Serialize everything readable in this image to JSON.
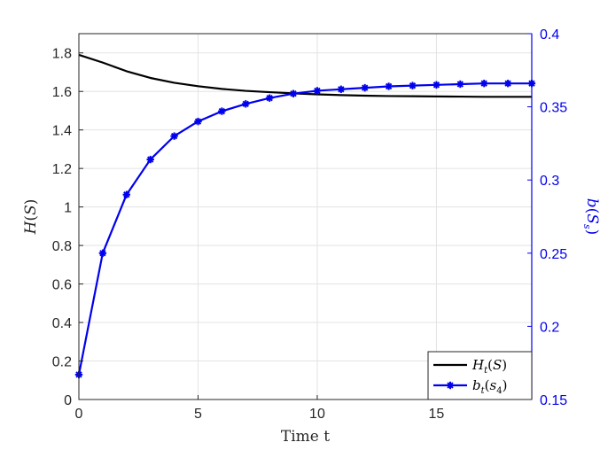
{
  "chart_data": {
    "type": "line",
    "xlabel": "Time t",
    "ylabel_left": "H(S)",
    "ylabel_right": "b(S_s)",
    "xlim": [
      0,
      19
    ],
    "ylim_left": [
      0,
      1.9
    ],
    "ylim_right": [
      0.15,
      0.4
    ],
    "x_ticks": [
      0,
      5,
      10,
      15
    ],
    "y_ticks_left": [
      0,
      0.2,
      0.4,
      0.6,
      0.8,
      1,
      1.2,
      1.4,
      1.6,
      1.8
    ],
    "y_ticks_right": [
      0.15,
      0.2,
      0.25,
      0.3,
      0.35,
      0.4
    ],
    "grid": true,
    "legend_position": "bottom-right",
    "series": [
      {
        "name": "H_t(S)",
        "axis": "left",
        "color": "#000000",
        "marker": "none",
        "x": [
          0,
          1,
          2,
          3,
          4,
          5,
          6,
          7,
          8,
          9,
          10,
          11,
          12,
          13,
          14,
          15,
          16,
          17,
          18,
          19
        ],
        "y": [
          1.79,
          1.75,
          1.705,
          1.67,
          1.645,
          1.627,
          1.613,
          1.603,
          1.596,
          1.59,
          1.585,
          1.581,
          1.578,
          1.576,
          1.575,
          1.574,
          1.573,
          1.572,
          1.572,
          1.572
        ]
      },
      {
        "name": "b_t(s_4)",
        "axis": "right",
        "color": "#0000ee",
        "marker": "asterisk",
        "x": [
          0,
          1,
          2,
          3,
          4,
          5,
          6,
          7,
          8,
          9,
          10,
          11,
          12,
          13,
          14,
          15,
          16,
          17,
          18,
          19
        ],
        "y": [
          0.167,
          0.25,
          0.29,
          0.314,
          0.33,
          0.34,
          0.347,
          0.352,
          0.356,
          0.359,
          0.361,
          0.362,
          0.363,
          0.364,
          0.3645,
          0.365,
          0.3655,
          0.366,
          0.366,
          0.366
        ]
      }
    ]
  }
}
